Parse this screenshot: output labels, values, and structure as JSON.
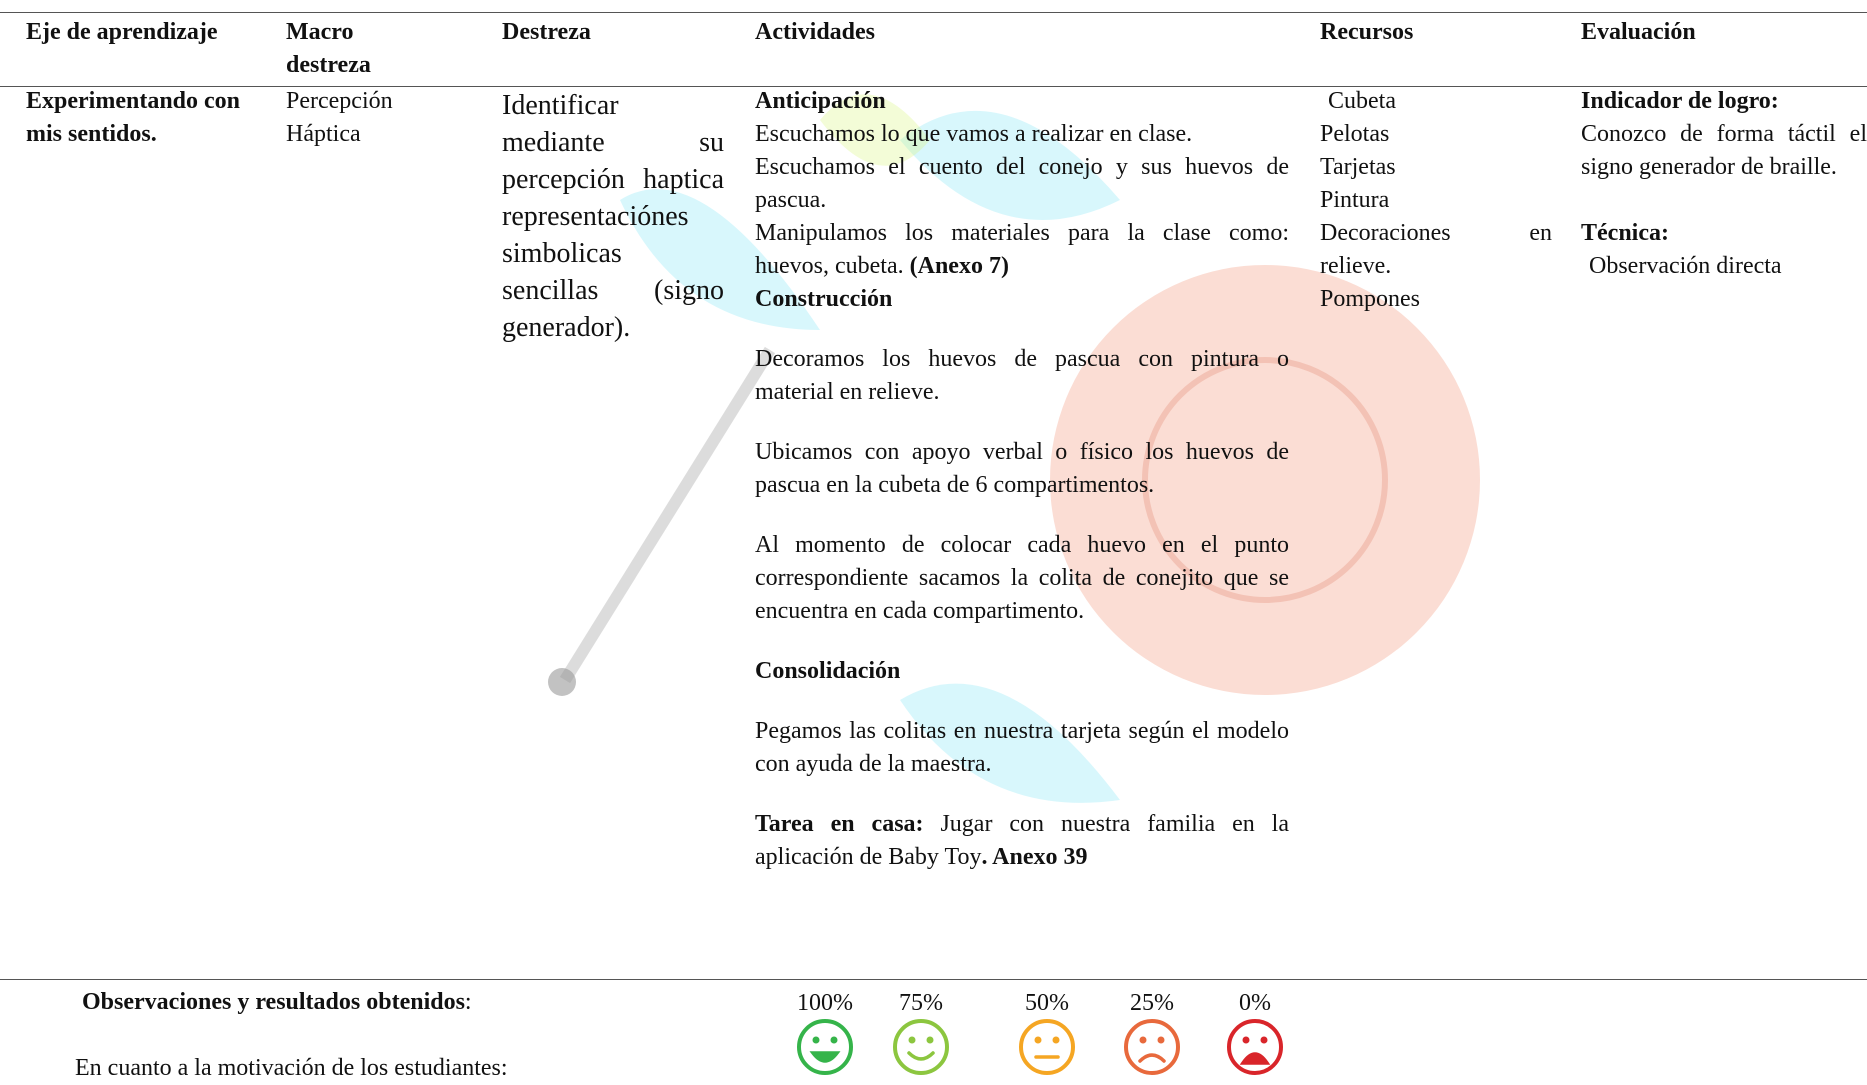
{
  "header": [
    "Eje de aprendizaje",
    "Macro destreza",
    "Destreza",
    "Actividades",
    "Recursos",
    "Evaluación"
  ],
  "row": {
    "eje": "Experimentando con mis sentidos.",
    "macro": "Percepción Háptica",
    "destreza": "Identificar mediante su percepción haptica representaciónes simbolicas sencillas (signo generador).",
    "actividades": [
      [
        "Anticipación"
      ],
      [
        "Escuchamos lo que vamos a realizar en clase."
      ],
      [
        "Escuchamos el cuento del conejo y sus huevos de pascua."
      ],
      [
        "Manipulamos los materiales para la clase como: huevos, cubeta.",
        "(Anexo 7)"
      ],
      [
        "Construcción"
      ],
      [
        "Decoramos los huevos de pascua con pintura o material en relieve."
      ],
      [
        "Ubicamos con apoyo verbal o físico los huevos de pascua en la cubeta de 6 compartimentos."
      ],
      [
        "Al momento de colocar cada huevo en el punto correspondiente sacamos la colita de conejito que se encuentra en cada compartimento."
      ],
      [
        "Consolidación"
      ],
      [
        "Pegamos las colitas en nuestra tarjeta según el modelo con ayuda de la maestra."
      ],
      [
        "Tarea en casa:",
        " Jugar con nuestra familia en la aplicación de Baby Toy",
        ". Anexo 39"
      ]
    ],
    "recursos": [
      "Cubeta",
      "Pelotas",
      "Tarjetas",
      "Pintura",
      "Decoraciones en relieve.",
      "Pompones"
    ],
    "evaluacion": {
      "indicador_title": "Indicador de logro:",
      "indicador": "Conozco de forma táctil el signo generador de braille.",
      "tecnica_title": "Técnica:",
      "tecnica": "Observación directa"
    }
  },
  "observaciones": {
    "title": "Observaciones y resultados obtenidos",
    "colon": ":",
    "scale": [
      "100%",
      "75%",
      "50%",
      "25%",
      "0%"
    ],
    "motivacion": "En cuanto a la motivación de los estudiantes:"
  }
}
